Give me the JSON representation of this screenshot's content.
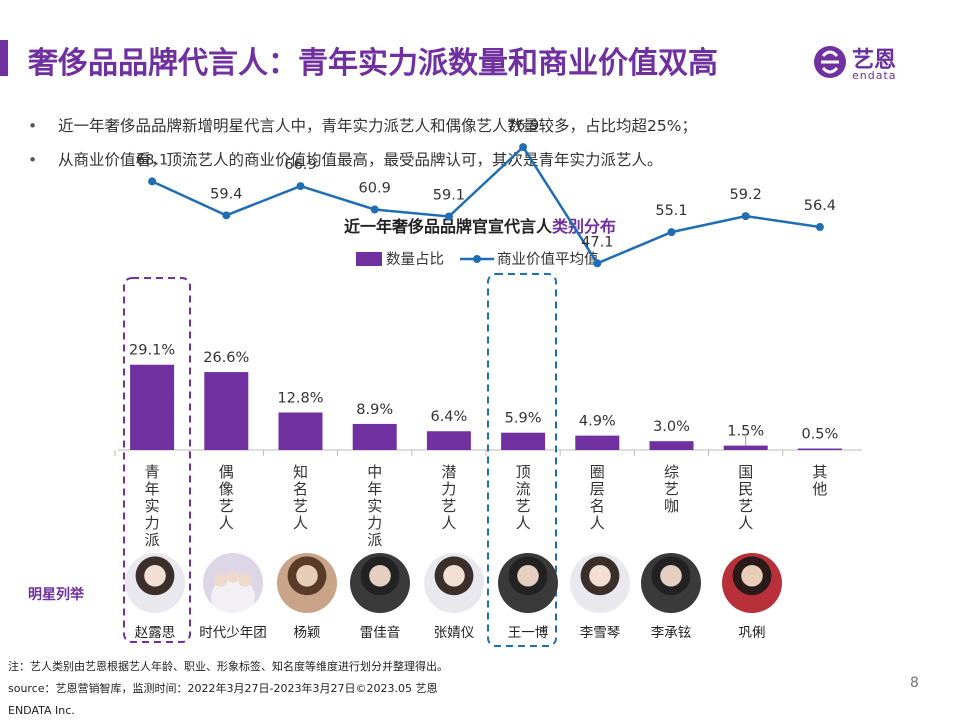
{
  "header": {
    "title": "奢侈品品牌代言人：青年实力派数量和商业价值双高",
    "logo_cn": "艺恩",
    "logo_en": "endata"
  },
  "bullets": [
    "近一年奢侈品品牌新增明星代言人中，青年实力派艺人和偶像艺人数量较多，占比均超25%；",
    "从商业价值看，顶流艺人的商业价值均值最高，最受品牌认可，其次是青年实力派艺人。"
  ],
  "chart_data": {
    "type": "bar",
    "title_main": "近一年奢侈品品牌官宣代言人",
    "title_highlight": "类别分布",
    "categories": [
      "青年实力派",
      "偶像艺人",
      "知名艺人",
      "中年实力派",
      "潜力艺人",
      "顶流艺人",
      "圈层名人",
      "综艺咖",
      "国民艺人",
      "其他"
    ],
    "series": [
      {
        "name": "数量占比",
        "kind": "bar",
        "values": [
          29.1,
          26.6,
          12.8,
          8.9,
          6.4,
          5.9,
          4.9,
          3.0,
          1.5,
          0.5
        ],
        "labels": [
          "29.1%",
          "26.6%",
          "12.8%",
          "8.9%",
          "6.4%",
          "5.9%",
          "4.9%",
          "3.0%",
          "1.5%",
          "0.5%"
        ],
        "color": "#7030a0"
      },
      {
        "name": "商业价值平均值",
        "kind": "line",
        "values": [
          68.1,
          59.4,
          66.9,
          60.9,
          59.1,
          76.9,
          47.1,
          55.1,
          59.2,
          56.4
        ],
        "labels": [
          "68.1",
          "59.4",
          "66.9",
          "60.9",
          "59.1",
          "76.9",
          "47.1",
          "55.1",
          "59.2",
          "56.4"
        ],
        "color": "#1f6eb4"
      }
    ],
    "legend_position": "top",
    "highlighted_categories": [
      "青年实力派",
      "顶流艺人"
    ]
  },
  "stars": {
    "label": "明星列举",
    "names": [
      "赵露思",
      "时代少年团",
      "杨颖",
      "雷佳音",
      "张婧仪",
      "王一博",
      "李雪琴",
      "李承铉",
      "巩俐"
    ]
  },
  "footer": {
    "note": "注：艺人类别由艺恩根据艺人年龄、职业、形象标签、知名度等维度进行划分并整理得出。",
    "source": "source：艺恩营销智库，监测时间：2022年3月27日-2023年3月27日©2023.05 艺恩",
    "company": "ENDATA Inc.",
    "page": "8"
  },
  "colors": {
    "accent": "#7030a0",
    "line": "#1f6eb4"
  }
}
